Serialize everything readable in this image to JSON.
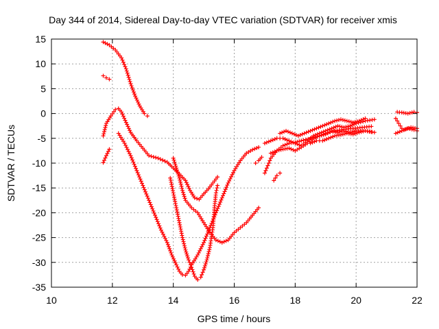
{
  "chart_data": {
    "type": "scatter",
    "title": "Day 344 of 2014, Sidereal Day-to-day VTEC variation (SDTVAR) for receiver xmis",
    "xlabel": "GPS time / hours",
    "ylabel": "SDTVAR / TECUs",
    "xlim": [
      10,
      22
    ],
    "ylim": [
      -35,
      15
    ],
    "xticks": [
      10,
      12,
      14,
      16,
      18,
      20,
      22
    ],
    "yticks": [
      15,
      10,
      5,
      0,
      -5,
      -10,
      -15,
      -20,
      -25,
      -30,
      -35
    ],
    "grid": true,
    "marker": "+",
    "color": "#ff0000",
    "series": [
      {
        "points": [
          [
            11.7,
            14.4
          ],
          [
            11.9,
            13.8
          ],
          [
            12.1,
            12.8
          ],
          [
            12.3,
            11.2
          ],
          [
            12.45,
            9.0
          ],
          [
            12.6,
            6.0
          ],
          [
            12.75,
            3.5
          ],
          [
            12.9,
            1.5
          ],
          [
            13.05,
            0.0
          ],
          [
            13.15,
            -0.5
          ]
        ]
      },
      {
        "points": [
          [
            11.7,
            7.6
          ],
          [
            11.8,
            7.2
          ],
          [
            11.9,
            6.9
          ]
        ]
      },
      {
        "points": [
          [
            11.7,
            -4.5
          ],
          [
            11.8,
            -2.0
          ],
          [
            11.95,
            -0.5
          ],
          [
            12.1,
            0.8
          ],
          [
            12.2,
            1.0
          ],
          [
            12.3,
            0.3
          ],
          [
            12.45,
            -1.8
          ],
          [
            12.6,
            -3.8
          ],
          [
            12.8,
            -5.5
          ],
          [
            13.0,
            -7.0
          ],
          [
            13.2,
            -8.5
          ],
          [
            13.5,
            -9.0
          ],
          [
            13.8,
            -9.8
          ],
          [
            14.0,
            -11.0
          ],
          [
            14.2,
            -12.2
          ],
          [
            14.4,
            -13.5
          ],
          [
            14.55,
            -15.5
          ],
          [
            14.7,
            -17.0
          ],
          [
            14.85,
            -17.3
          ],
          [
            15.0,
            -16.2
          ],
          [
            15.15,
            -15.2
          ],
          [
            15.3,
            -14.0
          ],
          [
            15.45,
            -12.8
          ]
        ]
      },
      {
        "points": [
          [
            11.7,
            -9.9
          ],
          [
            11.8,
            -8.5
          ],
          [
            11.9,
            -7.2
          ]
        ]
      },
      {
        "points": [
          [
            12.2,
            -4.0
          ],
          [
            12.4,
            -6.0
          ],
          [
            12.6,
            -8.5
          ],
          [
            12.8,
            -11.5
          ],
          [
            13.0,
            -14.5
          ],
          [
            13.2,
            -17.5
          ],
          [
            13.4,
            -20.5
          ],
          [
            13.6,
            -23.5
          ],
          [
            13.8,
            -26.0
          ],
          [
            13.95,
            -28.5
          ],
          [
            14.1,
            -30.5
          ],
          [
            14.2,
            -31.8
          ],
          [
            14.3,
            -32.5
          ],
          [
            14.4,
            -32.6
          ],
          [
            14.5,
            -31.8
          ],
          [
            14.6,
            -30.5
          ],
          [
            14.8,
            -28.5
          ],
          [
            15.0,
            -26.0
          ],
          [
            15.2,
            -23.0
          ],
          [
            15.4,
            -20.0
          ],
          [
            15.6,
            -17.0
          ],
          [
            15.8,
            -14.0
          ],
          [
            16.0,
            -11.5
          ],
          [
            16.2,
            -9.5
          ],
          [
            16.4,
            -8.0
          ],
          [
            16.6,
            -7.3
          ],
          [
            16.8,
            -6.8
          ]
        ]
      },
      {
        "points": [
          [
            13.9,
            -13.0
          ],
          [
            14.0,
            -16.0
          ],
          [
            14.1,
            -19.0
          ],
          [
            14.2,
            -22.0
          ],
          [
            14.3,
            -25.0
          ],
          [
            14.4,
            -27.5
          ],
          [
            14.5,
            -29.5
          ],
          [
            14.6,
            -31.0
          ],
          [
            14.7,
            -32.8
          ],
          [
            14.8,
            -33.5
          ],
          [
            14.9,
            -33.0
          ],
          [
            15.0,
            -31.5
          ],
          [
            15.1,
            -29.5
          ],
          [
            15.2,
            -27.0
          ],
          [
            15.3,
            -23.0
          ],
          [
            15.35,
            -19.0
          ],
          [
            15.4,
            -16.0
          ],
          [
            15.45,
            -14.5
          ]
        ]
      },
      {
        "points": [
          [
            14.0,
            -9.0
          ],
          [
            14.1,
            -11.0
          ],
          [
            14.2,
            -13.0
          ],
          [
            14.3,
            -15.5
          ],
          [
            14.4,
            -17.5
          ],
          [
            14.6,
            -19.0
          ],
          [
            14.8,
            -20.0
          ],
          [
            15.0,
            -22.0
          ],
          [
            15.2,
            -24.0
          ],
          [
            15.4,
            -25.5
          ],
          [
            15.6,
            -26.0
          ],
          [
            15.8,
            -25.5
          ],
          [
            16.0,
            -24.0
          ],
          [
            16.2,
            -23.0
          ],
          [
            16.4,
            -22.0
          ],
          [
            16.6,
            -20.5
          ],
          [
            16.8,
            -19.0
          ]
        ]
      },
      {
        "points": [
          [
            17.0,
            -12.0
          ],
          [
            17.1,
            -10.5
          ],
          [
            17.2,
            -9.0
          ],
          [
            17.4,
            -7.5
          ],
          [
            17.6,
            -6.5
          ],
          [
            17.8,
            -6.0
          ],
          [
            18.0,
            -5.8
          ],
          [
            18.2,
            -5.5
          ],
          [
            18.5,
            -5.0
          ],
          [
            18.8,
            -4.5
          ],
          [
            19.0,
            -4.0
          ],
          [
            19.3,
            -3.5
          ],
          [
            19.6,
            -3.2
          ],
          [
            19.9,
            -3.0
          ],
          [
            20.2,
            -2.8
          ],
          [
            20.5,
            -2.6
          ]
        ]
      },
      {
        "points": [
          [
            17.0,
            -6.0
          ],
          [
            17.2,
            -5.5
          ],
          [
            17.4,
            -5.0
          ],
          [
            17.6,
            -5.0
          ],
          [
            17.8,
            -5.5
          ],
          [
            18.0,
            -6.0
          ],
          [
            18.2,
            -6.5
          ],
          [
            18.4,
            -5.5
          ],
          [
            18.6,
            -4.5
          ],
          [
            18.8,
            -4.0
          ],
          [
            19.0,
            -3.5
          ],
          [
            19.2,
            -3.0
          ],
          [
            19.4,
            -2.5
          ],
          [
            19.6,
            -2.8
          ],
          [
            19.8,
            -2.5
          ],
          [
            20.0,
            -2.0
          ],
          [
            20.3,
            -1.5
          ],
          [
            20.6,
            -1.2
          ]
        ]
      },
      {
        "points": [
          [
            17.2,
            -8.0
          ],
          [
            17.4,
            -7.5
          ],
          [
            17.6,
            -7.2
          ],
          [
            17.8,
            -7.0
          ],
          [
            18.0,
            -7.5
          ],
          [
            18.2,
            -6.8
          ],
          [
            18.4,
            -6.0
          ],
          [
            18.6,
            -5.0
          ],
          [
            18.8,
            -4.5
          ],
          [
            19.0,
            -4.2
          ],
          [
            19.2,
            -3.5
          ],
          [
            19.4,
            -3.8
          ],
          [
            19.6,
            -3.5
          ],
          [
            19.8,
            -3.8
          ],
          [
            20.0,
            -3.5
          ],
          [
            20.3,
            -3.5
          ],
          [
            20.6,
            -3.8
          ]
        ]
      },
      {
        "points": [
          [
            17.5,
            -4.0
          ],
          [
            17.7,
            -3.5
          ],
          [
            17.9,
            -4.0
          ],
          [
            18.1,
            -4.5
          ],
          [
            18.3,
            -4.0
          ],
          [
            18.5,
            -3.5
          ],
          [
            18.7,
            -3.0
          ],
          [
            18.9,
            -2.5
          ],
          [
            19.1,
            -2.0
          ],
          [
            19.3,
            -1.5
          ],
          [
            19.5,
            -1.2
          ],
          [
            19.7,
            -1.5
          ],
          [
            19.9,
            -1.8
          ],
          [
            20.1,
            -1.5
          ],
          [
            20.3,
            -1.0
          ]
        ]
      },
      {
        "points": [
          [
            18.5,
            -6.0
          ],
          [
            18.7,
            -5.5
          ],
          [
            18.9,
            -5.5
          ],
          [
            19.1,
            -5.0
          ],
          [
            19.3,
            -4.5
          ],
          [
            19.5,
            -4.3
          ],
          [
            19.7,
            -4.0
          ],
          [
            19.9,
            -4.2
          ],
          [
            20.1,
            -3.8
          ],
          [
            20.3,
            -3.5
          ],
          [
            20.5,
            -3.7
          ]
        ]
      },
      {
        "points": [
          [
            16.7,
            -10.0
          ],
          [
            16.8,
            -9.5
          ],
          [
            16.9,
            -8.8
          ]
        ]
      },
      {
        "points": [
          [
            17.3,
            -13.5
          ],
          [
            17.4,
            -12.5
          ],
          [
            17.5,
            -12.0
          ]
        ]
      },
      {
        "points": [
          [
            21.3,
            -4.0
          ],
          [
            21.5,
            -3.5
          ],
          [
            21.7,
            -3.0
          ],
          [
            21.9,
            -3.3
          ],
          [
            22.0,
            -3.5
          ]
        ]
      },
      {
        "points": [
          [
            21.3,
            -1.0
          ],
          [
            21.4,
            -2.0
          ],
          [
            21.5,
            -3.0
          ],
          [
            21.6,
            -3.2
          ],
          [
            21.8,
            -2.8
          ],
          [
            22.0,
            -3.0
          ]
        ]
      },
      {
        "points": [
          [
            21.35,
            0.3
          ],
          [
            21.5,
            0.2
          ],
          [
            21.7,
            0.0
          ],
          [
            21.9,
            0.3
          ],
          [
            22.0,
            0.2
          ]
        ]
      }
    ]
  }
}
